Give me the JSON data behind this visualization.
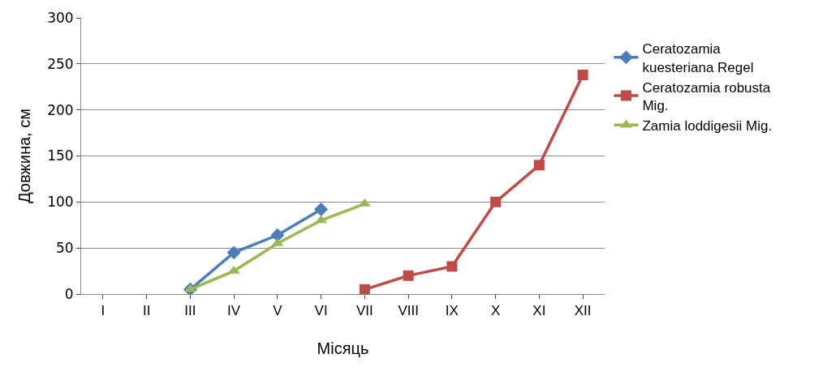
{
  "chart_data": {
    "type": "line",
    "xlabel": "Місяць",
    "ylabel": "Довжина, см",
    "categories": [
      "I",
      "II",
      "III",
      "IV",
      "V",
      "VI",
      "VII",
      "VIII",
      "IX",
      "X",
      "XI",
      "XII"
    ],
    "series": [
      {
        "name": "Ceratozamia kuesteriana Regel",
        "color": "#4a7ebb",
        "marker": "diamond",
        "values": [
          null,
          null,
          5,
          45,
          64,
          92,
          null,
          null,
          null,
          null,
          null,
          null
        ]
      },
      {
        "name": "Ceratozamia robusta Mig.",
        "color": "#be4b48",
        "marker": "square",
        "values": [
          null,
          null,
          null,
          null,
          null,
          null,
          5,
          20,
          30,
          100,
          140,
          238
        ]
      },
      {
        "name": "Zamia loddigesii Mig.",
        "color": "#98b954",
        "marker": "triangle",
        "values": [
          null,
          null,
          5,
          25,
          55,
          80,
          98,
          null,
          null,
          null,
          null,
          null
        ]
      }
    ],
    "ylim": [
      0,
      300
    ],
    "yticks": [
      0,
      50,
      100,
      150,
      200,
      250,
      300
    ],
    "grid": "y",
    "legend": "right",
    "line_style": "solid"
  }
}
